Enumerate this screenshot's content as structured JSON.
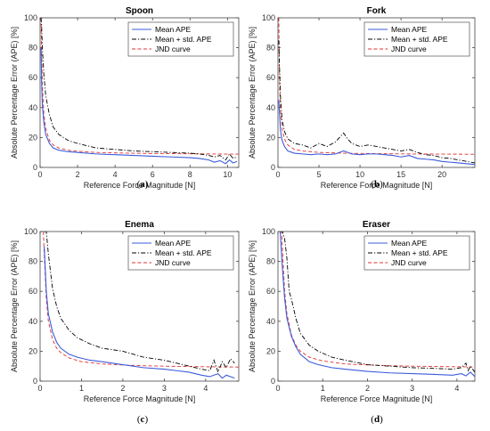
{
  "chart_data": [
    {
      "type": "line",
      "title": "Spoon",
      "caption": "(a)",
      "xlabel": "Reference Force Magnitude [N]",
      "ylabel": "Absolute Percentage Error (APE) [%]",
      "xlim": [
        0,
        10.6
      ],
      "ylim": [
        0,
        100
      ],
      "xticks": [
        0,
        2,
        4,
        6,
        8,
        10
      ],
      "yticks": [
        0,
        20,
        40,
        60,
        80,
        100
      ],
      "legend_position": "top-right",
      "series": [
        {
          "name": "Mean APE",
          "color": "#3b5bdb",
          "style": "solid",
          "x": [
            0.05,
            0.08,
            0.12,
            0.2,
            0.3,
            0.5,
            0.7,
            1.0,
            1.5,
            2,
            3,
            4,
            5,
            6,
            7,
            8,
            8.5,
            9,
            9.3,
            9.6,
            9.9,
            10.1,
            10.3,
            10.5
          ],
          "y": [
            80,
            58,
            42,
            30,
            22,
            16,
            13,
            11.5,
            10.5,
            10,
            9,
            8.5,
            8,
            7.5,
            7,
            6.5,
            6,
            5,
            3.5,
            4.5,
            2.5,
            5,
            3,
            4
          ]
        },
        {
          "name": "Mean + std. APE",
          "color": "#000000",
          "style": "dashdot",
          "x": [
            0.05,
            0.08,
            0.12,
            0.2,
            0.3,
            0.5,
            0.7,
            1.0,
            1.5,
            2,
            3,
            4,
            5,
            6,
            7,
            8,
            8.5,
            9,
            9.3,
            9.6,
            9.9,
            10.1,
            10.3,
            10.5
          ],
          "y": [
            100,
            95,
            80,
            62,
            48,
            35,
            27,
            22,
            18,
            16,
            13,
            12,
            11,
            10.5,
            10,
            9.5,
            9,
            8,
            7,
            8,
            5,
            9,
            6,
            7
          ]
        },
        {
          "name": "JND curve",
          "color": "#e03131",
          "style": "dashed",
          "x": [
            0.05,
            0.08,
            0.12,
            0.2,
            0.3,
            0.5,
            0.7,
            1.0,
            1.5,
            2,
            3,
            4,
            5,
            6,
            7,
            8,
            9,
            10,
            10.6
          ],
          "y": [
            100,
            78,
            55,
            36,
            26,
            18,
            15,
            13,
            11.5,
            10.8,
            10,
            9.7,
            9.5,
            9.3,
            9.2,
            9.1,
            9,
            8.9,
            8.9
          ]
        }
      ]
    },
    {
      "type": "line",
      "title": "Fork",
      "caption": "(b)",
      "xlabel": "Reference Force Magnitude [N]",
      "ylabel": "Absolute Percentage Error (APE) [%]",
      "xlim": [
        0,
        24
      ],
      "ylim": [
        0,
        100
      ],
      "xticks": [
        0,
        5,
        10,
        15,
        20
      ],
      "yticks": [
        0,
        20,
        40,
        60,
        80,
        100
      ],
      "legend_position": "top-right",
      "series": [
        {
          "name": "Mean APE",
          "color": "#3b5bdb",
          "style": "solid",
          "x": [
            0.1,
            0.2,
            0.3,
            0.5,
            0.8,
            1.2,
            2,
            3,
            4,
            5,
            6,
            7,
            8,
            9,
            10,
            11,
            12,
            13,
            14,
            15,
            16,
            17,
            18,
            19,
            20,
            21,
            22,
            23,
            24
          ],
          "y": [
            45,
            35,
            25,
            18,
            14,
            11,
            9.5,
            9,
            8.5,
            9,
            8.5,
            9,
            11,
            9,
            8.5,
            9,
            9,
            8.5,
            8,
            7,
            8,
            6,
            5.5,
            5,
            4,
            3.5,
            3,
            2.5,
            2
          ]
        },
        {
          "name": "Mean + std. APE",
          "color": "#000000",
          "style": "dashdot",
          "x": [
            0.1,
            0.2,
            0.3,
            0.5,
            0.8,
            1.2,
            2,
            3,
            4,
            5,
            6,
            7,
            7.5,
            8,
            8.5,
            9,
            10,
            11,
            12,
            13,
            14,
            15,
            16,
            17,
            18,
            19,
            20,
            21,
            22,
            23,
            24
          ],
          "y": [
            85,
            65,
            48,
            32,
            24,
            19,
            16,
            15,
            13,
            16,
            14,
            17,
            20,
            23,
            19,
            16,
            14,
            15,
            14,
            13,
            12,
            11,
            12,
            10,
            8.5,
            8,
            6.5,
            6,
            5,
            4,
            3
          ]
        },
        {
          "name": "JND curve",
          "color": "#e03131",
          "style": "dashed",
          "x": [
            0.1,
            0.2,
            0.3,
            0.5,
            0.8,
            1.2,
            2,
            3,
            5,
            8,
            12,
            16,
            20,
            24
          ],
          "y": [
            100,
            55,
            38,
            26,
            19,
            15,
            12,
            11,
            10,
            9.5,
            9.2,
            9,
            8.9,
            8.8
          ]
        }
      ]
    },
    {
      "type": "line",
      "title": "Enema",
      "caption": "(c)",
      "xlabel": "Reference Force Magnitude [N]",
      "ylabel": "Absolute Percentage Error (APE) [%]",
      "xlim": [
        0,
        4.8
      ],
      "ylim": [
        0,
        100
      ],
      "xticks": [
        0,
        1,
        2,
        3,
        4
      ],
      "yticks": [
        0,
        20,
        40,
        60,
        80,
        100
      ],
      "legend_position": "top-right",
      "series": [
        {
          "name": "Mean APE",
          "color": "#3b5bdb",
          "style": "solid",
          "x": [
            0.1,
            0.15,
            0.2,
            0.3,
            0.4,
            0.5,
            0.7,
            0.9,
            1.2,
            1.5,
            2,
            2.5,
            3,
            3.3,
            3.6,
            3.9,
            4.1,
            4.3,
            4.4,
            4.5,
            4.6,
            4.7
          ],
          "y": [
            90,
            60,
            45,
            33,
            26,
            22,
            18,
            16,
            14,
            13,
            11,
            9,
            8,
            7,
            6,
            4,
            3,
            5,
            2,
            4,
            3,
            2
          ]
        },
        {
          "name": "Mean + std. APE",
          "color": "#000000",
          "style": "dashdot",
          "x": [
            0.1,
            0.15,
            0.2,
            0.3,
            0.4,
            0.5,
            0.7,
            0.9,
            1.2,
            1.5,
            2,
            2.5,
            3,
            3.3,
            3.6,
            3.9,
            4.1,
            4.2,
            4.3,
            4.4,
            4.5,
            4.6,
            4.7
          ],
          "y": [
            100,
            100,
            85,
            62,
            50,
            42,
            34,
            29,
            25,
            22,
            20,
            16,
            14,
            12,
            10,
            8,
            7,
            14,
            6,
            13,
            9,
            15,
            12
          ]
        },
        {
          "name": "JND curve",
          "color": "#e03131",
          "style": "dashed",
          "x": [
            0.08,
            0.1,
            0.15,
            0.2,
            0.3,
            0.4,
            0.5,
            0.7,
            1.0,
            1.5,
            2,
            2.5,
            3,
            3.5,
            4,
            4.5,
            4.8
          ],
          "y": [
            100,
            85,
            55,
            40,
            28,
            22,
            19,
            15.5,
            13,
            11.5,
            10.8,
            10.3,
            10,
            9.8,
            9.6,
            9.5,
            9.4
          ]
        }
      ]
    },
    {
      "type": "line",
      "title": "Eraser",
      "caption": "(d)",
      "xlabel": "Reference Force Magnitude [N]",
      "ylabel": "Absolute Percentage Error (APE) [%]",
      "xlim": [
        0,
        4.4
      ],
      "ylim": [
        0,
        100
      ],
      "xticks": [
        0,
        1,
        2,
        3,
        4
      ],
      "yticks": [
        0,
        20,
        40,
        60,
        80,
        100
      ],
      "legend_position": "top-right",
      "series": [
        {
          "name": "Mean APE",
          "color": "#3b5bdb",
          "style": "solid",
          "x": [
            0.05,
            0.1,
            0.15,
            0.2,
            0.3,
            0.4,
            0.5,
            0.7,
            0.9,
            1.2,
            1.5,
            2,
            2.5,
            3,
            3.5,
            3.9,
            4.1,
            4.2,
            4.3,
            4.4
          ],
          "y": [
            100,
            75,
            55,
            42,
            30,
            23,
            18,
            13,
            11,
            9,
            8,
            6.5,
            5.5,
            5,
            4.5,
            4,
            5,
            3.5,
            6,
            3
          ]
        },
        {
          "name": "Mean + std. APE",
          "color": "#000000",
          "style": "dashdot",
          "x": [
            0.05,
            0.1,
            0.15,
            0.2,
            0.25,
            0.3,
            0.4,
            0.5,
            0.7,
            0.9,
            1.2,
            1.5,
            2,
            2.5,
            3,
            3.5,
            3.9,
            4.1,
            4.2,
            4.25,
            4.3,
            4.4
          ],
          "y": [
            100,
            100,
            95,
            82,
            60,
            55,
            42,
            32,
            24,
            20,
            16,
            14,
            11,
            10,
            9,
            8.5,
            8,
            9,
            12,
            7,
            10,
            6
          ]
        },
        {
          "name": "JND curve",
          "color": "#e03131",
          "style": "dashed",
          "x": [
            0.05,
            0.08,
            0.1,
            0.15,
            0.2,
            0.3,
            0.4,
            0.5,
            0.7,
            1.0,
            1.5,
            2,
            2.5,
            3,
            3.5,
            4,
            4.4
          ],
          "y": [
            100,
            100,
            88,
            60,
            45,
            31,
            24,
            20,
            16,
            13.5,
            11.5,
            10.8,
            10.3,
            10,
            9.8,
            9.6,
            9.5
          ]
        }
      ]
    }
  ]
}
